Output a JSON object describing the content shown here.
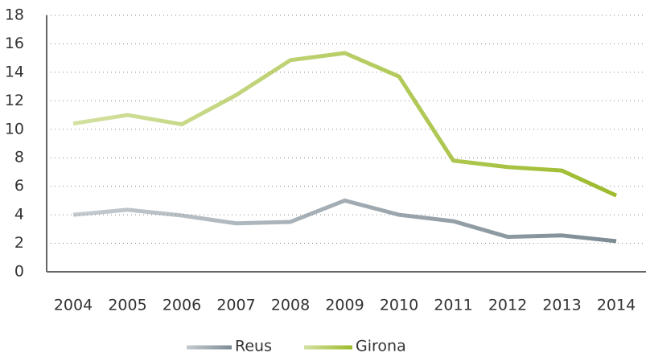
{
  "chart_data": {
    "type": "line",
    "categories": [
      "2004",
      "2005",
      "2006",
      "2007",
      "2008",
      "2009",
      "2010",
      "2011",
      "2012",
      "2013",
      "2014"
    ],
    "series": [
      {
        "name": "Reus",
        "color": "#7e8c95",
        "values": [
          4.0,
          4.35,
          3.95,
          3.4,
          3.5,
          5.0,
          4.0,
          3.55,
          2.45,
          2.55,
          2.15
        ]
      },
      {
        "name": "Girona",
        "color": "#9dbb2c",
        "values": [
          10.4,
          11.0,
          10.35,
          12.4,
          14.85,
          15.35,
          13.7,
          7.8,
          7.35,
          7.1,
          5.35
        ]
      }
    ],
    "ylim": [
      0,
      18
    ],
    "yticks": [
      0,
      2,
      4,
      6,
      8,
      10,
      12,
      14,
      16,
      18
    ],
    "grid": true,
    "legend": "bottom"
  }
}
